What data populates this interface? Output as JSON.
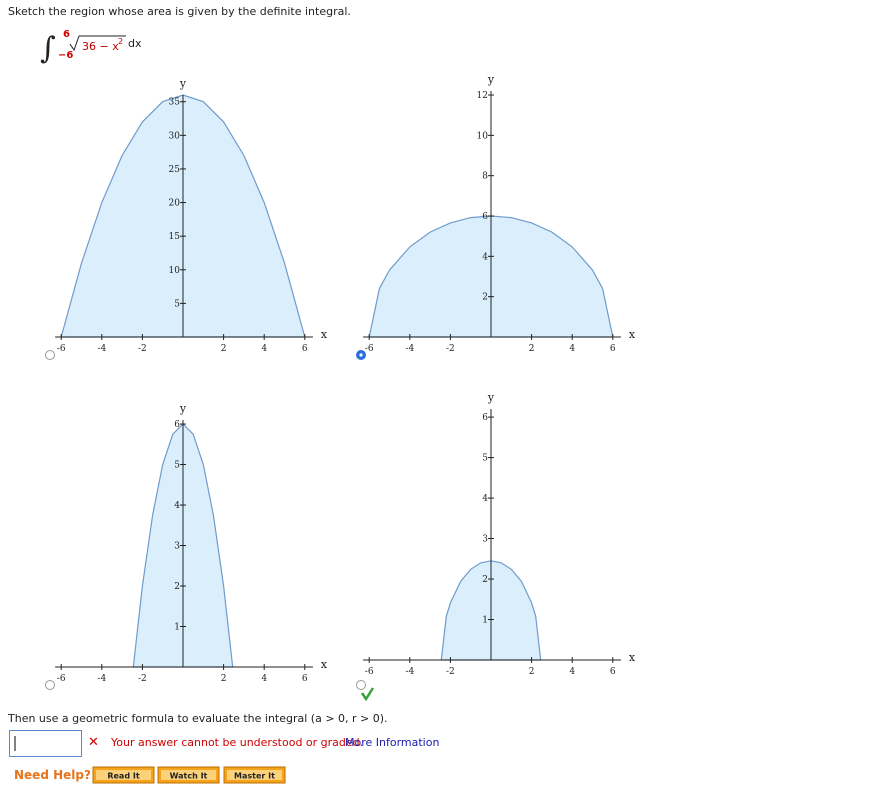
{
  "prompt": "Sketch the region whose area is given by the definite integral.",
  "integral": {
    "upper": "6",
    "lower": "−6",
    "radicand": "36 − x",
    "exponent": "2",
    "differential": "dx"
  },
  "options": [
    {
      "selected": false,
      "graph": {
        "xlabel": "x",
        "ylabel": "y",
        "xlim": [
          -6.3,
          6.4
        ],
        "ylim": [
          0,
          36
        ],
        "xticks": [
          -6,
          -4,
          -2,
          2,
          4,
          6
        ],
        "yticks": [
          5,
          10,
          15,
          20,
          25,
          30,
          35
        ],
        "fill": "#dbeefc",
        "stroke": "#6f9bcb",
        "curve": {
          "x": [
            -6,
            -5,
            -4,
            -3,
            -2,
            -1,
            0,
            1,
            2,
            3,
            4,
            5,
            6
          ],
          "y": [
            0,
            11,
            20,
            27,
            32,
            35,
            36,
            35,
            32,
            27,
            20,
            11,
            0
          ]
        }
      }
    },
    {
      "selected": true,
      "graph": {
        "xlabel": "x",
        "ylabel": "y",
        "xlim": [
          -6.3,
          6.4
        ],
        "ylim": [
          0,
          12.2
        ],
        "xticks": [
          -6,
          -4,
          -2,
          2,
          4,
          6
        ],
        "yticks": [
          2,
          4,
          6,
          8,
          10,
          12
        ],
        "fill": "#dbeefc",
        "stroke": "#6f9bcb",
        "curve": {
          "x": [
            -6,
            -5.5,
            -5,
            -4,
            -3,
            -2,
            -1,
            0,
            1,
            2,
            3,
            4,
            5,
            5.5,
            6
          ],
          "y": [
            0,
            2.4,
            3.32,
            4.47,
            5.2,
            5.66,
            5.92,
            6,
            5.92,
            5.66,
            5.2,
            4.47,
            3.32,
            2.4,
            0
          ]
        }
      }
    },
    {
      "selected": false,
      "graph": {
        "xlabel": "x",
        "ylabel": "y",
        "xlim": [
          -6.3,
          6.4
        ],
        "ylim": [
          0,
          6.1
        ],
        "xticks": [
          -6,
          -4,
          -2,
          2,
          4,
          6
        ],
        "yticks": [
          1,
          2,
          3,
          4,
          5,
          6
        ],
        "fill": "#dbeefc",
        "stroke": "#6f9bcb",
        "curve": {
          "x": [
            -2.45,
            -2,
            -1.5,
            -1,
            -0.5,
            0,
            0.5,
            1,
            1.5,
            2,
            2.45
          ],
          "y": [
            0,
            2,
            3.75,
            5,
            5.75,
            6,
            5.75,
            5,
            3.75,
            2,
            0
          ]
        }
      }
    },
    {
      "selected": false,
      "graph": {
        "xlabel": "x",
        "ylabel": "y",
        "xlim": [
          -6.3,
          6.4
        ],
        "ylim": [
          0,
          6.2
        ],
        "xticks": [
          -6,
          -4,
          -2,
          2,
          4,
          6
        ],
        "yticks": [
          1,
          2,
          3,
          4,
          5,
          6
        ],
        "fill": "#dbeefc",
        "stroke": "#6f9bcb",
        "curve": {
          "x": [
            -2.45,
            -2.2,
            -2,
            -1.5,
            -1,
            -0.5,
            0,
            0.5,
            1,
            1.5,
            2,
            2.2,
            2.45
          ],
          "y": [
            0,
            1.08,
            1.41,
            1.94,
            2.24,
            2.4,
            2.45,
            2.4,
            2.24,
            1.94,
            1.41,
            1.08,
            0
          ]
        }
      }
    }
  ],
  "followup": "Then use a geometric formula to evaluate the integral (a > 0,  r > 0).",
  "feedback": {
    "message": "Your answer cannot be understood or graded.",
    "link": "More Information"
  },
  "help": {
    "label": "Need Help?",
    "buttons": [
      "Read It",
      "Watch It",
      "Master It"
    ]
  }
}
